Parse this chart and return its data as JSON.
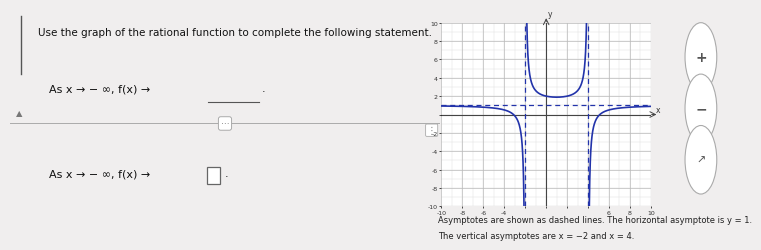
{
  "title_text": "Use the graph of the rational function to complete the following statement.",
  "line1_math": "As x → − ∞, f(x) →",
  "line2_math": "As x → − ∞, f(x) →",
  "footnote1": "Asymptotes are shown as dashed lines. The horizontal asymptote is y = 1.",
  "footnote2": "The vertical asymptotes are x = −2 and x = 4.",
  "bg_left": "#f0eeee",
  "bg_right": "#dcdcdc",
  "graph_bg": "#ffffff",
  "grid_color": "#bbbbbb",
  "axis_color": "#444444",
  "curve_color": "#2233aa",
  "asymptote_color": "#2233aa",
  "ha_y": 1,
  "va_x1": -2,
  "va_x2": 4,
  "xlim": [
    -10,
    10
  ],
  "ylim": [
    -10,
    10
  ]
}
